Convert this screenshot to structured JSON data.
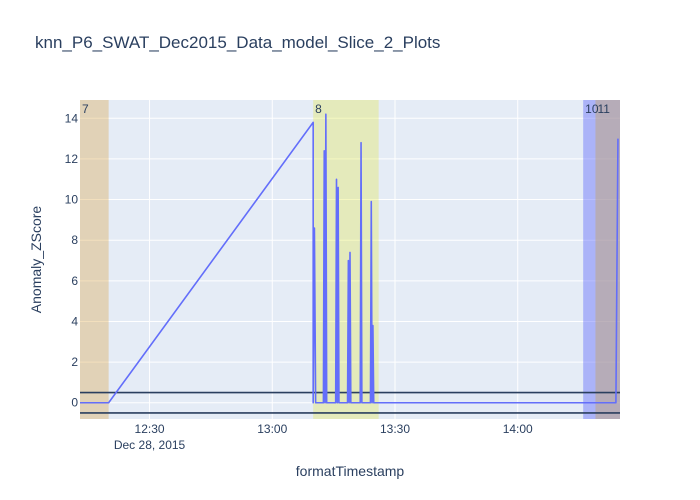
{
  "chart_data": {
    "type": "line",
    "title": "knn_P6_SWAT_Dec2015_Data_model_Slice_2_Plots",
    "xlabel": "formatTimestamp",
    "ylabel": "Anomaly_ZScore",
    "x_axis_type": "time",
    "x_range": [
      "2015-12-28 12:13",
      "2015-12-28 14:25"
    ],
    "xticks": [
      {
        "time": "2015-12-28 12:30",
        "label": "12:30",
        "sublabel": "Dec 28, 2015"
      },
      {
        "time": "2015-12-28 13:00",
        "label": "13:00",
        "sublabel": ""
      },
      {
        "time": "2015-12-28 13:30",
        "label": "13:30",
        "sublabel": ""
      },
      {
        "time": "2015-12-28 14:00",
        "label": "14:00",
        "sublabel": ""
      }
    ],
    "ylim": [
      -0.8,
      14.9
    ],
    "yticks": [
      0,
      2,
      4,
      6,
      8,
      10,
      12,
      14
    ],
    "grid": true,
    "colors": {
      "plot_bg": "#e5ecf6",
      "grid": "#ffffff",
      "series_line": "#636efa",
      "series_dense": "#8c93c9",
      "threshold": "#2a3f5f"
    },
    "regions": [
      {
        "label": "7",
        "start": "2015-12-28 12:13",
        "end": "2015-12-28 12:20",
        "color": "#d9a441",
        "opacity": 0.35
      },
      {
        "label": "8",
        "start": "2015-12-28 13:10",
        "end": "2015-12-28 13:26",
        "color": "#e3e84d",
        "opacity": 0.35
      },
      {
        "label": "10",
        "start": "2015-12-28 14:16",
        "end": "2015-12-28 14:25",
        "color": "#636efa",
        "opacity": 0.45
      },
      {
        "label": "11",
        "start": "2015-12-28 14:19",
        "end": "2015-12-28 14:25",
        "color": "#c4a36b",
        "opacity": 0.45
      }
    ],
    "thresholds": [
      0.5,
      -0.5
    ],
    "series": [
      {
        "points": [
          [
            "2015-12-28 12:13",
            0
          ],
          [
            "2015-12-28 12:20",
            0
          ],
          [
            "2015-12-28 13:10",
            13.8
          ],
          [
            "2015-12-28 13:10",
            0
          ],
          [
            "2015-12-28 13:10.3",
            8.6
          ],
          [
            "2015-12-28 13:10.6",
            0
          ],
          [
            "2015-12-28 13:12.5",
            0
          ],
          [
            "2015-12-28 13:12.7",
            12.4
          ],
          [
            "2015-12-28 13:12.9",
            0
          ],
          [
            "2015-12-28 13:13.1",
            14.2
          ],
          [
            "2015-12-28 13:13.3",
            0
          ],
          [
            "2015-12-28 13:15.5",
            0
          ],
          [
            "2015-12-28 13:15.7",
            11.0
          ],
          [
            "2015-12-28 13:15.9",
            0
          ],
          [
            "2015-12-28 13:16.1",
            10.6
          ],
          [
            "2015-12-28 13:16.3",
            0
          ],
          [
            "2015-12-28 13:18.4",
            0
          ],
          [
            "2015-12-28 13:18.6",
            7.0
          ],
          [
            "2015-12-28 13:18.8",
            0
          ],
          [
            "2015-12-28 13:19.0",
            7.4
          ],
          [
            "2015-12-28 13:19.2",
            0
          ],
          [
            "2015-12-28 13:21.5",
            0
          ],
          [
            "2015-12-28 13:21.7",
            12.8
          ],
          [
            "2015-12-28 13:21.9",
            0
          ],
          [
            "2015-12-28 13:24.0",
            0
          ],
          [
            "2015-12-28 13:24.2",
            9.9
          ],
          [
            "2015-12-28 13:24.4",
            0
          ],
          [
            "2015-12-28 13:24.6",
            3.8
          ],
          [
            "2015-12-28 13:24.8",
            0
          ],
          [
            "2015-12-28 14:24",
            0
          ],
          [
            "2015-12-28 14:24.2",
            5.3
          ],
          [
            "2015-12-28 14:24.5",
            13.0
          ]
        ]
      }
    ]
  }
}
